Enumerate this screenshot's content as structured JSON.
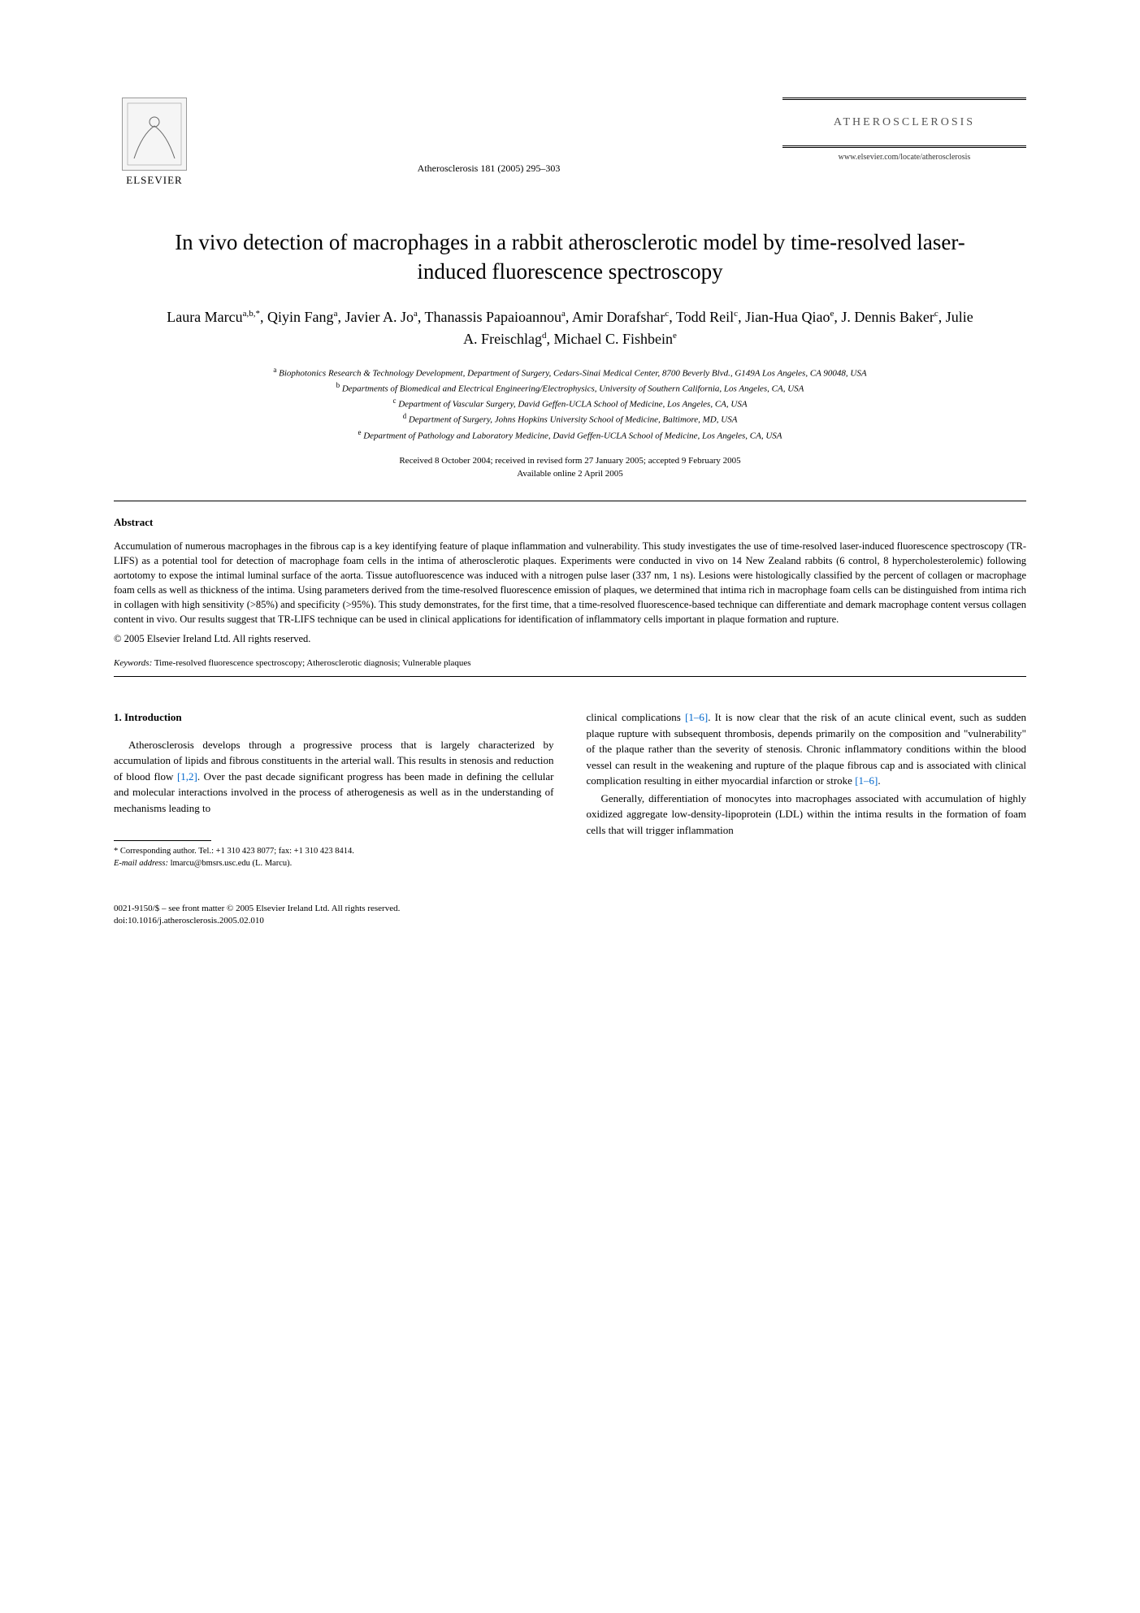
{
  "header": {
    "publisher": "ELSEVIER",
    "citation": "Atherosclerosis 181 (2005) 295–303",
    "journal_name": "ATHEROSCLEROSIS",
    "journal_url": "www.elsevier.com/locate/atherosclerosis"
  },
  "title": "In vivo detection of macrophages in a rabbit atherosclerotic model by time-resolved laser-induced fluorescence spectroscopy",
  "authors_html": "Laura Marcu<sup>a,b,*</sup>, Qiyin Fang<sup>a</sup>, Javier A. Jo<sup>a</sup>, Thanassis Papaioannou<sup>a</sup>, Amir Dorafshar<sup>c</sup>, Todd Reil<sup>c</sup>, Jian-Hua Qiao<sup>e</sup>, J. Dennis Baker<sup>c</sup>, Julie A. Freischlag<sup>d</sup>, Michael C. Fishbein<sup>e</sup>",
  "affiliations": [
    {
      "sup": "a",
      "text": "Biophotonics Research & Technology Development, Department of Surgery, Cedars-Sinai Medical Center, 8700 Beverly Blvd., G149A Los Angeles, CA 90048, USA"
    },
    {
      "sup": "b",
      "text": "Departments of Biomedical and Electrical Engineering/Electrophysics, University of Southern California, Los Angeles, CA, USA"
    },
    {
      "sup": "c",
      "text": "Department of Vascular Surgery, David Geffen-UCLA School of Medicine, Los Angeles, CA, USA"
    },
    {
      "sup": "d",
      "text": "Department of Surgery, Johns Hopkins University School of Medicine, Baltimore, MD, USA"
    },
    {
      "sup": "e",
      "text": "Department of Pathology and Laboratory Medicine, David Geffen-UCLA School of Medicine, Los Angeles, CA, USA"
    }
  ],
  "dates": {
    "line1": "Received 8 October 2004; received in revised form 27 January 2005; accepted 9 February 2005",
    "line2": "Available online 2 April 2005"
  },
  "abstract": {
    "heading": "Abstract",
    "body": "Accumulation of numerous macrophages in the fibrous cap is a key identifying feature of plaque inflammation and vulnerability. This study investigates the use of time-resolved laser-induced fluorescence spectroscopy (TR-LIFS) as a potential tool for detection of macrophage foam cells in the intima of atherosclerotic plaques. Experiments were conducted in vivo on 14 New Zealand rabbits (6 control, 8 hypercholesterolemic) following aortotomy to expose the intimal luminal surface of the aorta. Tissue autofluorescence was induced with a nitrogen pulse laser (337 nm, 1 ns). Lesions were histologically classified by the percent of collagen or macrophage foam cells as well as thickness of the intima. Using parameters derived from the time-resolved fluorescence emission of plaques, we determined that intima rich in macrophage foam cells can be distinguished from intima rich in collagen with high sensitivity (>85%) and specificity (>95%). This study demonstrates, for the first time, that a time-resolved fluorescence-based technique can differentiate and demark macrophage content versus collagen content in vivo. Our results suggest that TR-LIFS technique can be used in clinical applications for identification of inflammatory cells important in plaque formation and rupture.",
    "copyright": "© 2005 Elsevier Ireland Ltd. All rights reserved."
  },
  "keywords": {
    "label": "Keywords:",
    "text": "Time-resolved fluorescence spectroscopy; Atherosclerotic diagnosis; Vulnerable plaques"
  },
  "intro": {
    "heading": "1. Introduction",
    "left_p1_pre": "Atherosclerosis develops through a progressive process that is largely characterized by accumulation of lipids and fibrous constituents in the arterial wall. This results in stenosis and reduction of blood flow ",
    "left_p1_ref": "[1,2]",
    "left_p1_post": ". Over the past decade significant progress has been made in defining the cellular and molecular interactions involved in the process of atherogenesis as well as in the understanding of mechanisms leading to",
    "right_p1_pre": "clinical complications ",
    "right_p1_ref1": "[1–6]",
    "right_p1_mid": ". It is now clear that the risk of an acute clinical event, such as sudden plaque rupture with subsequent thrombosis, depends primarily on the composition and \"vulnerability\" of the plaque rather than the severity of stenosis. Chronic inflammatory conditions within the blood vessel can result in the weakening and rupture of the plaque fibrous cap and is associated with clinical complication resulting in either myocardial infarction or stroke ",
    "right_p1_ref2": "[1–6]",
    "right_p1_post": ".",
    "right_p2": "Generally, differentiation of monocytes into macrophages associated with accumulation of highly oxidized aggregate low-density-lipoprotein (LDL) within the intima results in the formation of foam cells that will trigger inflammation"
  },
  "footnote": {
    "corr": "* Corresponding author. Tel.: +1 310 423 8077; fax: +1 310 423 8414.",
    "email_label": "E-mail address:",
    "email": "lmarcu@bmsrs.usc.edu (L. Marcu)."
  },
  "footer": {
    "line1": "0021-9150/$ – see front matter © 2005 Elsevier Ireland Ltd. All rights reserved.",
    "line2": "doi:10.1016/j.atherosclerosis.2005.02.010"
  },
  "colors": {
    "link": "#0066cc",
    "text": "#000000",
    "bg": "#ffffff"
  }
}
